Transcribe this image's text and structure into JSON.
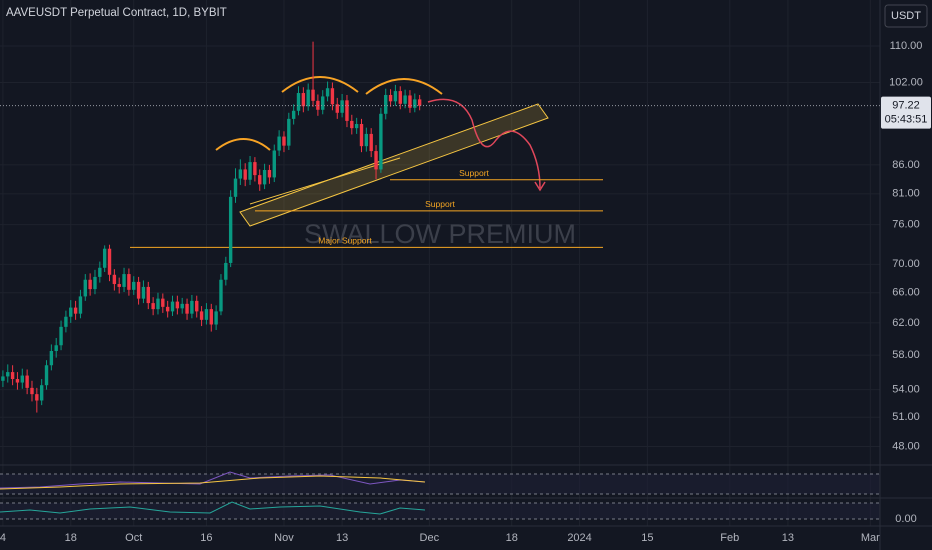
{
  "chart_data": {
    "type": "candlestick",
    "title": "AAVEUSDT Perpetual Contract, 1D, BYBIT",
    "currency": "USDT",
    "watermark": "SWALLOW PREMIUM",
    "countdown": "05:43:51",
    "log_scale": true,
    "grid": true,
    "up_color": "#089981",
    "down_color": "#f23645",
    "xlim": [
      -0.6,
      181
    ],
    "xticks": [
      {
        "value": 0,
        "label": "4"
      },
      {
        "value": 14,
        "label": "18"
      },
      {
        "value": 27,
        "label": "Oct"
      },
      {
        "value": 42,
        "label": "16"
      },
      {
        "value": 58,
        "label": "Nov"
      },
      {
        "value": 70,
        "label": "13"
      },
      {
        "value": 88,
        "label": "Dec"
      },
      {
        "value": 105,
        "label": "18"
      },
      {
        "value": 119,
        "label": "2024"
      },
      {
        "value": 133,
        "label": "15"
      },
      {
        "value": 150,
        "label": "Feb"
      },
      {
        "value": 162,
        "label": "13"
      },
      {
        "value": 179,
        "label": "Mar"
      }
    ],
    "ylim": [
      46.2,
      121
    ],
    "yticks": [
      {
        "value": 110,
        "label": "110.00"
      },
      {
        "value": 102,
        "label": "102.00"
      },
      {
        "value": 86,
        "label": "86.00"
      },
      {
        "value": 81,
        "label": "81.00"
      },
      {
        "value": 76,
        "label": "76.00"
      },
      {
        "value": 70,
        "label": "70.00"
      },
      {
        "value": 66,
        "label": "66.00"
      },
      {
        "value": 62,
        "label": "62.00"
      },
      {
        "value": 58,
        "label": "58.00"
      },
      {
        "value": 54,
        "label": "54.00"
      },
      {
        "value": 51,
        "label": "51.00"
      },
      {
        "value": 48,
        "label": "48.00"
      }
    ],
    "indicator_ticks": [
      {
        "value": 0,
        "label": "0.00"
      }
    ],
    "levels": [
      {
        "label": "Support",
        "value": 83.4
      },
      {
        "label": "Support",
        "value": 78.2
      },
      {
        "label": "Major Support",
        "value": 72.5
      }
    ],
    "last_price": 97.22,
    "x": [
      0,
      1,
      2,
      3,
      4,
      5,
      6,
      7,
      8,
      9,
      10,
      11,
      12,
      13,
      14,
      15,
      16,
      17,
      18,
      19,
      20,
      21,
      22,
      23,
      24,
      25,
      26,
      27,
      28,
      29,
      30,
      31,
      32,
      33,
      34,
      35,
      36,
      37,
      38,
      39,
      40,
      41,
      42,
      43,
      44,
      45,
      46,
      47,
      48,
      49,
      50,
      51,
      52,
      53,
      54,
      55,
      56,
      57,
      58,
      59,
      60,
      61,
      62,
      63,
      64,
      65,
      66,
      67,
      68,
      69,
      70,
      71,
      72,
      73,
      74,
      75,
      76,
      77,
      78,
      79,
      80,
      81,
      82,
      83,
      84,
      85,
      86
    ],
    "open": [
      55.0,
      55.5,
      56,
      55.2,
      54.8,
      55.6,
      54.2,
      53.5,
      52.8,
      54.5,
      56.8,
      58.5,
      59.2,
      61.5,
      62.8,
      64,
      63.2,
      65.5,
      67.8,
      66.5,
      68.2,
      69.5,
      72.3,
      68.5,
      67.2,
      66.8,
      68.6,
      66.4,
      67.5,
      65.2,
      66.8,
      64.6,
      63.8,
      65.2,
      64.1,
      63.5,
      64.8,
      63.9,
      64.5,
      63.2,
      64.9,
      63.5,
      62.4,
      63.8,
      61.8,
      63.5,
      67.8,
      70.2,
      80.5,
      83.6,
      85.2,
      83.4,
      86.5,
      84.2,
      82.6,
      85.1,
      83.8,
      88.6,
      91.2,
      89.5,
      94.6,
      96.2,
      99.8,
      97.1,
      100.5,
      98.2,
      96.4,
      99.1,
      100.8,
      97.5,
      95.8,
      98.3,
      94.2,
      92.8,
      93.6,
      89.4,
      91.7,
      88.5,
      85.2,
      95.6,
      99.4,
      98.1,
      100.2,
      97.6,
      99.3,
      96.8,
      98.5
    ],
    "high": [
      56.2,
      56.9,
      56.8,
      56.0,
      56.4,
      56.3,
      55.0,
      54.2,
      55.2,
      57.4,
      59.3,
      60.1,
      62.3,
      63.6,
      65.0,
      64.9,
      66.4,
      68.6,
      68.7,
      69.2,
      70.4,
      72.8,
      72.9,
      69.3,
      68.1,
      69.5,
      69.4,
      68.3,
      68.2,
      67.7,
      67.5,
      65.4,
      66.0,
      65.9,
      64.9,
      65.6,
      65.6,
      65.3,
      65.2,
      65.7,
      65.6,
      64.2,
      64.6,
      64.5,
      64.3,
      68.6,
      71.1,
      81.6,
      85.4,
      87.0,
      86.3,
      87.6,
      87.4,
      85.2,
      86.2,
      86.0,
      89.7,
      92.4,
      92.2,
      95.8,
      97.5,
      101.2,
      101.0,
      101.8,
      111.0,
      99.5,
      100.4,
      102.2,
      102.0,
      98.8,
      99.6,
      99.4,
      95.4,
      94.8,
      94.6,
      92.9,
      92.8,
      89.6,
      96.8,
      100.7,
      100.6,
      101.5,
      101.2,
      100.5,
      100.4,
      99.7,
      99.4
    ],
    "low": [
      54.3,
      54.8,
      54.5,
      54.0,
      54.1,
      53.5,
      52.7,
      51.5,
      52.3,
      54.0,
      56.2,
      57.7,
      58.6,
      60.8,
      62.0,
      62.4,
      62.6,
      64.9,
      65.6,
      65.8,
      67.4,
      68.9,
      67.6,
      66.3,
      65.9,
      66.1,
      65.6,
      65.7,
      64.4,
      64.6,
      63.8,
      63.0,
      63.1,
      63.3,
      62.7,
      62.9,
      63.1,
      63.2,
      62.4,
      62.6,
      62.7,
      61.6,
      61.8,
      60.9,
      61.1,
      63.0,
      67.0,
      69.6,
      79.5,
      82.5,
      82.3,
      82.5,
      83.1,
      81.5,
      81.8,
      82.7,
      83.0,
      87.6,
      88.3,
      88.7,
      93.5,
      95.3,
      95.9,
      96.2,
      97.0,
      95.2,
      95.5,
      98.1,
      96.3,
      94.6,
      94.9,
      93.0,
      91.6,
      91.7,
      88.3,
      88.4,
      87.4,
      83.5,
      84.6,
      94.5,
      97.0,
      97.2,
      96.5,
      96.7,
      95.8,
      95.9,
      96.3
    ],
    "close": [
      55.5,
      56,
      55.2,
      54.8,
      55.6,
      54.2,
      53.5,
      52.8,
      54.5,
      56.8,
      58.5,
      59.2,
      61.5,
      62.8,
      64,
      63.2,
      65.5,
      67.8,
      66.5,
      68.2,
      69.5,
      72.3,
      68.5,
      67.2,
      66.8,
      68.6,
      66.4,
      67.5,
      65.2,
      66.8,
      64.6,
      63.8,
      65.2,
      64.1,
      63.5,
      64.8,
      63.9,
      64.5,
      63.2,
      64.9,
      63.5,
      62.4,
      63.8,
      61.8,
      63.5,
      67.8,
      70.2,
      80.5,
      83.6,
      85.2,
      83.4,
      86.5,
      84.2,
      82.6,
      85.1,
      83.8,
      88.6,
      91.2,
      89.5,
      94.6,
      96.2,
      99.8,
      97.1,
      100.5,
      98.2,
      96.4,
      99.1,
      100.8,
      97.5,
      95.8,
      98.3,
      94.2,
      92.8,
      93.6,
      89.4,
      91.7,
      88.5,
      85.2,
      95.6,
      99.4,
      98.1,
      100.2,
      97.6,
      99.3,
      96.8,
      98.5,
      97.22
    ]
  }
}
